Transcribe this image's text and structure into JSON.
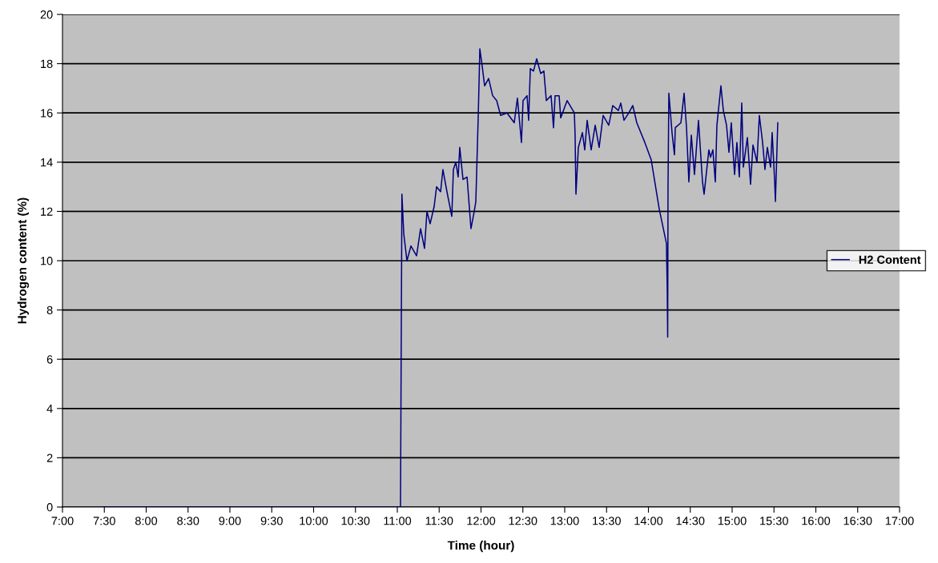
{
  "chart_data": {
    "type": "line",
    "xlabel": "Time (hour)",
    "ylabel": "Hydrogen content (%)",
    "xlim": [
      7,
      17
    ],
    "ylim": [
      0,
      20
    ],
    "xticks": [
      {
        "value": 7,
        "label": "7:00"
      },
      {
        "value": 7.5,
        "label": "7:30"
      },
      {
        "value": 8,
        "label": "8:00"
      },
      {
        "value": 8.5,
        "label": "8:30"
      },
      {
        "value": 9,
        "label": "9:00"
      },
      {
        "value": 9.5,
        "label": "9:30"
      },
      {
        "value": 10,
        "label": "10:00"
      },
      {
        "value": 10.5,
        "label": "10:30"
      },
      {
        "value": 11,
        "label": "11:00"
      },
      {
        "value": 11.5,
        "label": "11:30"
      },
      {
        "value": 12,
        "label": "12:00"
      },
      {
        "value": 12.5,
        "label": "12:30"
      },
      {
        "value": 13,
        "label": "13:00"
      },
      {
        "value": 13.5,
        "label": "13:30"
      },
      {
        "value": 14,
        "label": "14:00"
      },
      {
        "value": 14.5,
        "label": "14:30"
      },
      {
        "value": 15,
        "label": "15:00"
      },
      {
        "value": 15.5,
        "label": "15:30"
      },
      {
        "value": 16,
        "label": "16:00"
      },
      {
        "value": 16.5,
        "label": "16:30"
      },
      {
        "value": 17,
        "label": "17:00"
      }
    ],
    "yticks": [
      0,
      2,
      4,
      6,
      8,
      10,
      12,
      14,
      16,
      18,
      20
    ],
    "grid": "y",
    "legend": "right",
    "marker": "none",
    "line_style": "solid",
    "series": [
      {
        "name": "H2 Content",
        "color": "#000080",
        "x": [
          7.47,
          11.038,
          11.055,
          11.077,
          11.115,
          11.163,
          11.23,
          11.278,
          11.325,
          11.354,
          11.392,
          11.44,
          11.469,
          11.517,
          11.545,
          11.593,
          11.651,
          11.67,
          11.699,
          11.727,
          11.746,
          11.785,
          11.833,
          11.88,
          11.919,
          11.938,
          11.967,
          11.986,
          12.014,
          12.043,
          12.091,
          12.139,
          12.187,
          12.234,
          12.311,
          12.397,
          12.435,
          12.483,
          12.502,
          12.55,
          12.569,
          12.589,
          12.627,
          12.665,
          12.713,
          12.751,
          12.78,
          12.837,
          12.866,
          12.885,
          12.933,
          12.952,
          13.029,
          13.115,
          13.124,
          13.134,
          13.163,
          13.211,
          13.239,
          13.268,
          13.316,
          13.364,
          13.411,
          13.459,
          13.526,
          13.574,
          13.641,
          13.67,
          13.708,
          13.766,
          13.813,
          13.861,
          13.957,
          14.033,
          14.129,
          14.215,
          14.225,
          14.23,
          14.234,
          14.244,
          14.282,
          14.311,
          14.321,
          14.388,
          14.426,
          14.455,
          14.483,
          14.512,
          14.55,
          14.598,
          14.646,
          14.665,
          14.722,
          14.742,
          14.77,
          14.799,
          14.818,
          14.866,
          14.895,
          14.933,
          14.962,
          14.99,
          15.029,
          15.057,
          15.086,
          15.115,
          15.134,
          15.182,
          15.22,
          15.249,
          15.297,
          15.325,
          15.364,
          15.392,
          15.421,
          15.459,
          15.478,
          15.507,
          15.517,
          15.545
        ],
        "values": [
          0,
          0,
          12.7,
          11.1,
          10.0,
          10.6,
          10.2,
          11.3,
          10.5,
          12.0,
          11.5,
          12.2,
          13.0,
          12.8,
          13.7,
          12.8,
          11.8,
          13.7,
          14.0,
          13.4,
          14.6,
          13.3,
          13.4,
          11.3,
          12.0,
          12.4,
          15.9,
          18.6,
          17.9,
          17.1,
          17.4,
          16.7,
          16.5,
          15.9,
          16.0,
          15.6,
          16.6,
          14.8,
          16.5,
          16.7,
          15.7,
          17.8,
          17.7,
          18.2,
          17.6,
          17.7,
          16.5,
          16.7,
          15.4,
          16.7,
          16.7,
          15.8,
          16.5,
          16.0,
          15.1,
          12.7,
          14.6,
          15.2,
          14.5,
          15.7,
          14.5,
          15.5,
          14.6,
          15.9,
          15.5,
          16.3,
          16.1,
          16.4,
          15.7,
          16.0,
          16.3,
          15.6,
          14.8,
          14.1,
          12.1,
          10.7,
          8.8,
          6.9,
          13.0,
          16.8,
          15.2,
          14.3,
          15.4,
          15.6,
          16.8,
          15.4,
          13.2,
          15.1,
          13.5,
          15.7,
          13.2,
          12.7,
          14.5,
          14.2,
          14.5,
          13.2,
          15.5,
          17.1,
          16.1,
          15.5,
          14.4,
          15.6,
          13.5,
          14.8,
          13.4,
          16.4,
          13.8,
          15.0,
          13.1,
          14.7,
          14.0,
          15.9,
          14.8,
          13.7,
          14.6,
          13.8,
          15.2,
          13.3,
          12.4,
          15.6
        ]
      }
    ]
  }
}
